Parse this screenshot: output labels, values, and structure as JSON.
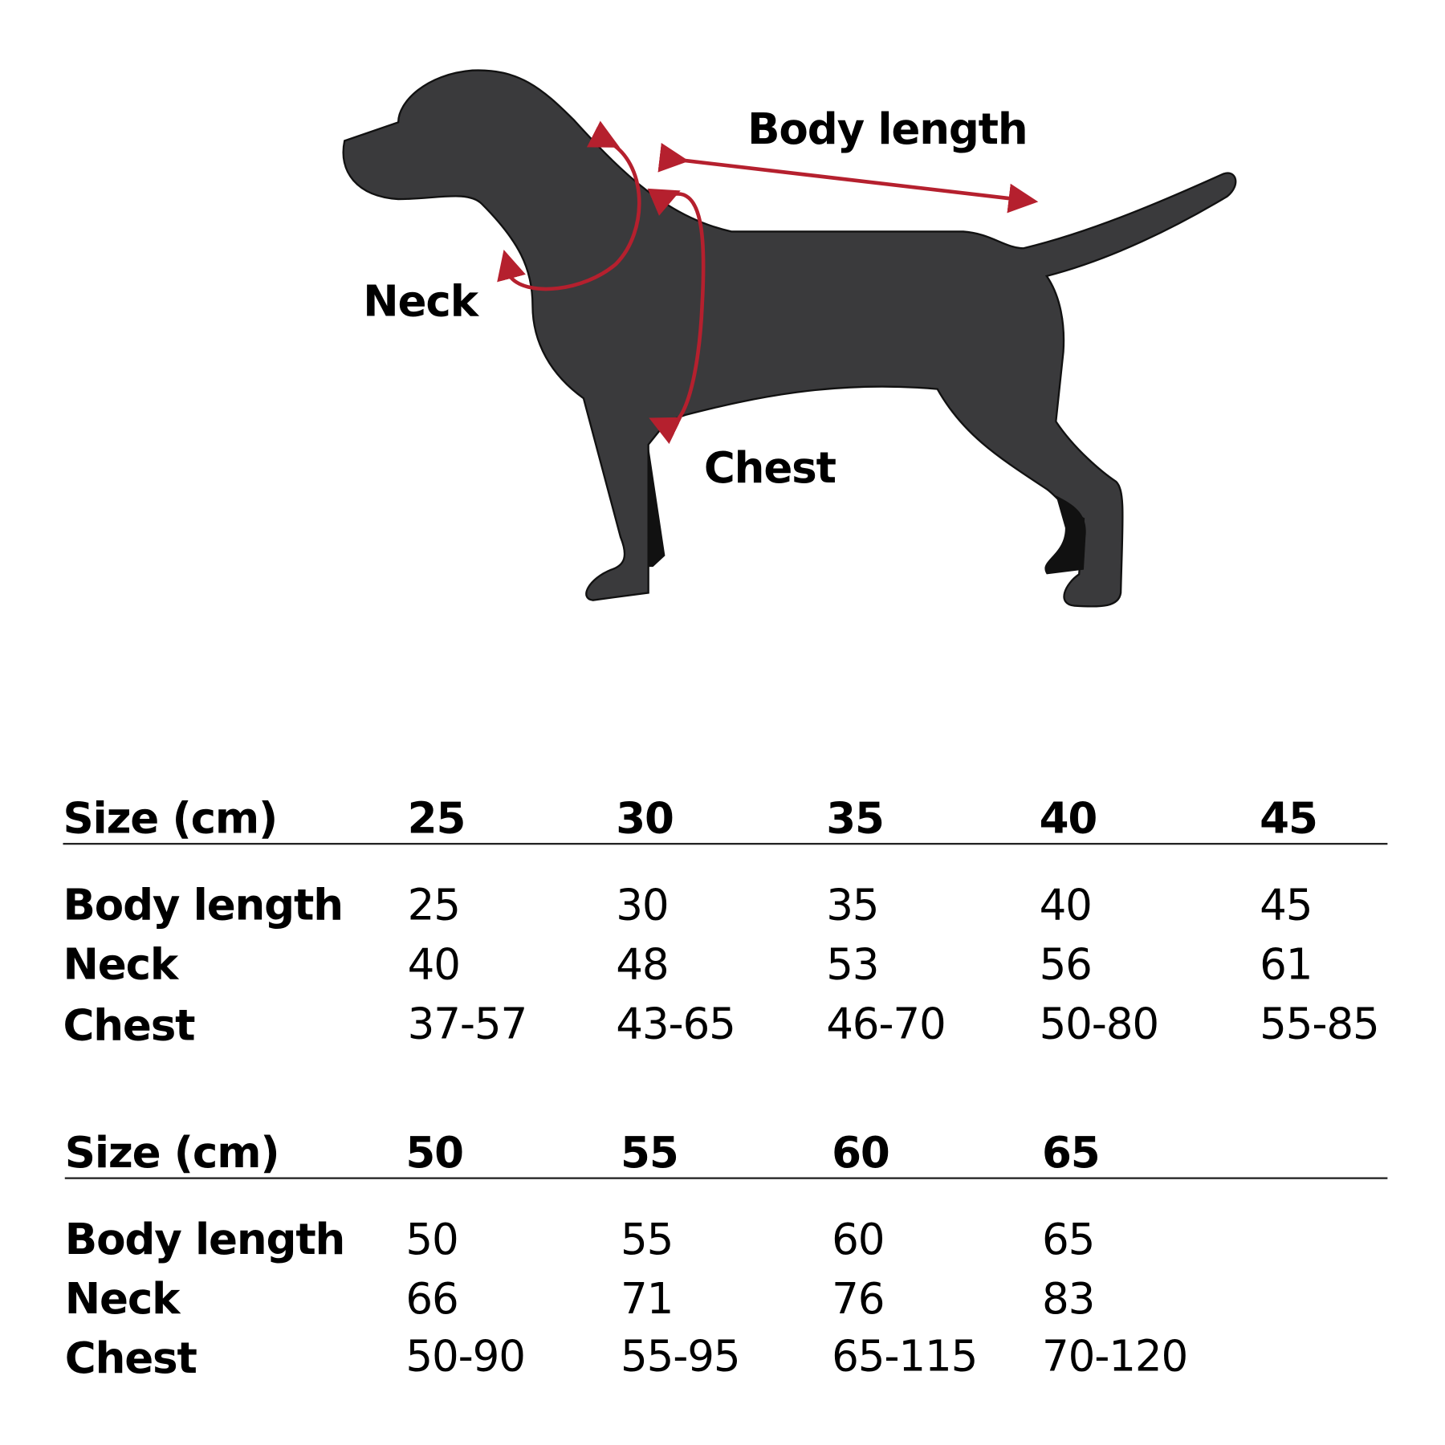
{
  "diagram": {
    "labels": {
      "body_length": "Body length",
      "neck": "Neck",
      "chest": "Chest"
    },
    "colors": {
      "dog": "#3a3a3c",
      "arrows": "#b5202e"
    },
    "icon": "dog-silhouette"
  },
  "tables": [
    {
      "header_label": "Size (cm)",
      "sizes": [
        "25",
        "30",
        "35",
        "40",
        "45"
      ],
      "rows": [
        {
          "label": "Body length",
          "values": [
            "25",
            "30",
            "35",
            "40",
            "45"
          ]
        },
        {
          "label": "Neck",
          "values": [
            "40",
            "48",
            "53",
            "56",
            "61"
          ]
        },
        {
          "label": "Chest",
          "values": [
            "37-57",
            "43-65",
            "46-70",
            "50-80",
            "55-85"
          ]
        }
      ]
    },
    {
      "header_label": "Size (cm)",
      "sizes": [
        "50",
        "55",
        "60",
        "65"
      ],
      "rows": [
        {
          "label": "Body length",
          "values": [
            "50",
            "55",
            "60",
            "65"
          ]
        },
        {
          "label": "Neck",
          "values": [
            "66",
            "71",
            "76",
            "83"
          ]
        },
        {
          "label": "Chest",
          "values": [
            "50-90",
            "55-95",
            "65-115",
            "70-120"
          ]
        }
      ]
    }
  ]
}
